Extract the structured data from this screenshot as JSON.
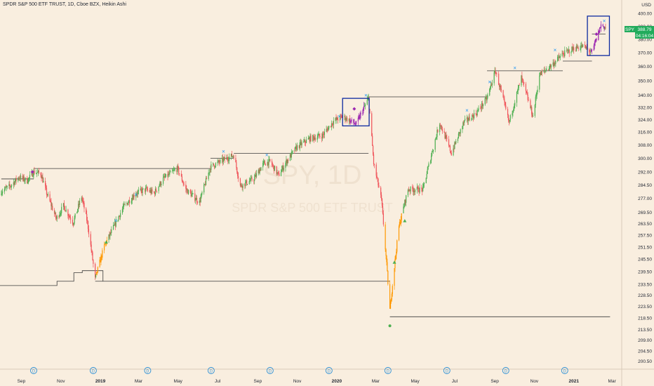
{
  "header": {
    "title": "SPDR S&P 500 ETF TRUST, 1D, Cboe BZX, Heikin Ashi"
  },
  "watermark": {
    "symbol": "SPY, 1D",
    "name": "SPDR S&P 500 ETF TRUST"
  },
  "price_scale": {
    "currency": "USD"
  },
  "last_price": {
    "symbol": "SPY",
    "value": "388.79",
    "countdown": "04:16:04",
    "color": "#22ab5c"
  },
  "colors": {
    "background": "#f9eedf",
    "up": "#4caf50",
    "down": "#f0545a",
    "orange": "#ff9800",
    "purple": "#9c27b0",
    "cross": "#2196f3",
    "box": "#0d2aa0",
    "dividend": "#2a8fd6"
  },
  "dividend_marker": "D",
  "chart_data": {
    "type": "candlestick",
    "title": "SPDR S&P 500 ETF TRUST, 1D, Cboe BZX, Heikin Ashi",
    "xlabel": "",
    "ylabel": "USD",
    "ylim": [
      199,
      403
    ],
    "y_scale": "log",
    "y_ticks": [
      "400.00",
      "390.00",
      "380.00",
      "370.00",
      "360.00",
      "350.00",
      "340.00",
      "332.00",
      "324.00",
      "316.00",
      "308.00",
      "300.00",
      "292.00",
      "284.50",
      "277.00",
      "269.50",
      "263.50",
      "257.50",
      "251.50",
      "245.50",
      "239.50",
      "233.50",
      "228.50",
      "223.50",
      "218.50",
      "213.50",
      "209.00",
      "204.50",
      "200.50"
    ],
    "x_ticks": [
      "Sep",
      "Nov",
      "2019",
      "Mar",
      "May",
      "Jul",
      "Sep",
      "Nov",
      "2020",
      "Mar",
      "May",
      "Jul",
      "Sep",
      "Nov",
      "2021",
      "Mar"
    ],
    "x_tick_values": [
      "2018-09-01",
      "2018-11-01",
      "2019-01-01",
      "2019-03-01",
      "2019-05-01",
      "2019-07-01",
      "2019-09-01",
      "2019-11-01",
      "2020-01-01",
      "2020-03-01",
      "2020-05-01",
      "2020-07-01",
      "2020-09-01",
      "2020-11-01",
      "2021-01-01",
      "2021-03-01"
    ],
    "xlim": [
      "2018-07-30",
      "2021-03-16"
    ],
    "series": [
      {
        "values": [
          [
            "2018-08-01",
            281
          ],
          [
            "2018-08-15",
            284
          ],
          [
            "2018-08-28",
            289
          ],
          [
            "2018-09-10",
            287
          ],
          [
            "2018-09-20",
            292
          ],
          [
            "2018-10-01",
            291
          ],
          [
            "2018-10-10",
            280
          ],
          [
            "2018-10-25",
            266
          ],
          [
            "2018-11-05",
            273
          ],
          [
            "2018-11-20",
            264
          ],
          [
            "2018-12-03",
            278
          ],
          [
            "2018-12-12",
            264
          ],
          [
            "2018-12-24",
            236
          ],
          [
            "2019-01-07",
            252
          ],
          [
            "2019-01-22",
            262
          ],
          [
            "2019-02-05",
            272
          ],
          [
            "2019-02-25",
            280
          ],
          [
            "2019-03-12",
            282
          ],
          [
            "2019-03-25",
            280
          ],
          [
            "2019-04-08",
            288
          ],
          [
            "2019-04-30",
            294
          ],
          [
            "2019-05-13",
            282
          ],
          [
            "2019-06-03",
            275
          ],
          [
            "2019-06-20",
            295
          ],
          [
            "2019-07-15",
            300
          ],
          [
            "2019-07-26",
            302
          ],
          [
            "2019-08-05",
            284
          ],
          [
            "2019-08-26",
            288
          ],
          [
            "2019-09-10",
            297
          ],
          [
            "2019-09-20",
            298
          ],
          [
            "2019-10-03",
            290
          ],
          [
            "2019-10-15",
            298
          ],
          [
            "2019-11-01",
            307
          ],
          [
            "2019-11-20",
            312
          ],
          [
            "2019-12-10",
            314
          ],
          [
            "2019-12-27",
            323
          ],
          [
            "2020-01-10",
            326
          ],
          [
            "2020-01-31",
            321
          ],
          [
            "2020-02-19",
            338
          ],
          [
            "2020-02-27",
            297
          ],
          [
            "2020-03-10",
            276
          ],
          [
            "2020-03-23",
            222
          ],
          [
            "2020-04-06",
            262
          ],
          [
            "2020-04-20",
            282
          ],
          [
            "2020-05-13",
            282
          ],
          [
            "2020-06-08",
            322
          ],
          [
            "2020-06-26",
            303
          ],
          [
            "2020-07-15",
            322
          ],
          [
            "2020-08-03",
            328
          ],
          [
            "2020-08-20",
            338
          ],
          [
            "2020-09-02",
            357
          ],
          [
            "2020-09-23",
            322
          ],
          [
            "2020-10-12",
            352
          ],
          [
            "2020-10-30",
            326
          ],
          [
            "2020-11-09",
            354
          ],
          [
            "2020-11-30",
            362
          ],
          [
            "2020-12-15",
            369
          ],
          [
            "2020-12-31",
            373
          ],
          [
            "2021-01-15",
            375
          ],
          [
            "2021-01-29",
            370
          ],
          [
            "2021-02-12",
            391
          ],
          [
            "2021-02-19",
            389
          ]
        ]
      }
    ],
    "horizontal_levels": [
      {
        "from": "2018-08-01",
        "to": "2018-09-20",
        "value": 288
      },
      {
        "from": "2018-09-20",
        "to": "2019-06-20",
        "value": 294
      },
      {
        "from": "2019-06-20",
        "to": "2019-07-26",
        "value": 300
      },
      {
        "from": "2019-07-26",
        "to": "2020-02-19",
        "value": 303
      },
      {
        "from": "2020-02-19",
        "to": "2020-08-20",
        "value": 339
      },
      {
        "from": "2020-08-20",
        "to": "2020-12-15",
        "value": 357
      },
      {
        "from": "2020-12-15",
        "to": "2021-01-29",
        "value": 364
      },
      {
        "from": "2021-01-29",
        "to": "2021-02-19",
        "value": 384
      },
      {
        "from": "2018-12-24",
        "to": "2020-03-23",
        "value": 235
      },
      {
        "from": "2020-03-23",
        "to": "2021-02-26",
        "value": 219
      }
    ],
    "trailing_stop": [
      [
        "2018-07-30",
        233
      ],
      [
        "2018-10-25",
        233
      ],
      [
        "2018-10-26",
        235
      ],
      [
        "2018-11-20",
        235
      ],
      [
        "2018-11-21",
        239
      ],
      [
        "2018-12-03",
        239
      ],
      [
        "2018-12-04",
        240
      ],
      [
        "2018-12-24",
        240
      ],
      [
        "2019-01-05",
        235
      ]
    ],
    "boxes": [
      {
        "x0": "2020-01-10",
        "x1": "2020-02-20",
        "y0": 320,
        "y1": 338
      },
      {
        "x0": "2021-01-22",
        "x1": "2021-02-25",
        "y0": 368,
        "y1": 398
      }
    ],
    "cross_markers": [
      [
        "2019-01-25",
        265
      ],
      [
        "2019-02-25",
        279
      ],
      [
        "2019-07-10",
        304
      ],
      [
        "2019-09-15",
        302
      ],
      [
        "2020-01-05",
        326
      ],
      [
        "2020-02-15",
        340
      ],
      [
        "2020-07-20",
        330
      ],
      [
        "2020-08-24",
        349
      ],
      [
        "2020-10-02",
        359
      ],
      [
        "2020-12-03",
        372
      ],
      [
        "2021-02-17",
        394
      ]
    ],
    "triangle_markers": [
      [
        "2019-01-10",
        254
      ],
      [
        "2020-04-15",
        265
      ],
      [
        "2020-03-30",
        244
      ]
    ],
    "diamond_markers": [
      [
        "2018-09-18",
        292
      ],
      [
        "2020-01-28",
        331
      ],
      [
        "2021-02-05",
        384
      ]
    ],
    "bottom_marker": [
      "2020-03-23",
      216
    ],
    "dividend_dates": [
      "2018-09-20",
      "2018-12-21",
      "2019-03-15",
      "2019-06-21",
      "2019-09-20",
      "2019-12-20",
      "2020-03-20",
      "2020-06-19",
      "2020-09-18",
      "2020-12-18"
    ]
  }
}
